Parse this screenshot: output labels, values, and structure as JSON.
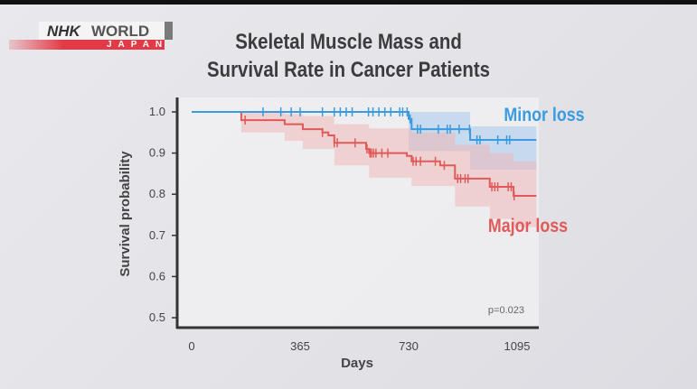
{
  "brand": {
    "logo_line1_a": "NHK",
    "logo_line1_b": "WORLD",
    "logo_line2": "JAPAN"
  },
  "chart_data": {
    "type": "line",
    "subtype": "kaplan-meier step",
    "title_line1": "Skeletal Muscle Mass and",
    "title_line2": "Survival Rate in Cancer Patients",
    "xlabel": "Days",
    "ylabel": "Survival probability",
    "xticks": [
      0,
      365,
      730,
      1095
    ],
    "yticks": [
      0.5,
      0.6,
      0.7,
      0.8,
      0.9,
      1.0
    ],
    "xlim": [
      -30,
      1165
    ],
    "ylim": [
      0.48,
      1.03
    ],
    "grid": false,
    "annotation": "p=0.023",
    "series": [
      {
        "name": "Minor loss",
        "color": "#3a9be0",
        "band_color": "#9fc6ec",
        "steps": [
          [
            0,
            1.0
          ],
          [
            730,
            0.983
          ],
          [
            740,
            0.958
          ],
          [
            937,
            0.932
          ]
        ],
        "end": 1160,
        "ci": [
          [
            730,
            0.905,
            1.0
          ],
          [
            937,
            0.86,
            0.965
          ]
        ],
        "censored": [
          240,
          300,
          335,
          365,
          440,
          480,
          500,
          520,
          540,
          595,
          610,
          630,
          650,
          670,
          700,
          710,
          725,
          735,
          760,
          770,
          830,
          860,
          870,
          900,
          935,
          960,
          970,
          1030,
          1060,
          1070
        ]
      },
      {
        "name": "Major loss",
        "color": "#e05a5a",
        "band_color": "#f2b4b4",
        "steps": [
          [
            0,
            1.0
          ],
          [
            167,
            0.98
          ],
          [
            313,
            0.97
          ],
          [
            374,
            0.958
          ],
          [
            440,
            0.95
          ],
          [
            460,
            0.943
          ],
          [
            480,
            0.925
          ],
          [
            587,
            0.91
          ],
          [
            597,
            0.9
          ],
          [
            724,
            0.893
          ],
          [
            740,
            0.88
          ],
          [
            836,
            0.87
          ],
          [
            886,
            0.838
          ],
          [
            1003,
            0.818
          ],
          [
            1083,
            0.796
          ]
        ],
        "end": 1160,
        "ci": [
          [
            167,
            0.95,
            1.0
          ],
          [
            313,
            0.93,
            0.995
          ],
          [
            374,
            0.91,
            0.99
          ],
          [
            480,
            0.87,
            0.97
          ],
          [
            597,
            0.84,
            0.96
          ],
          [
            740,
            0.82,
            0.95
          ],
          [
            886,
            0.77,
            0.92
          ],
          [
            1003,
            0.74,
            0.9
          ],
          [
            1083,
            0.72,
            0.88
          ]
        ],
        "censored": [
          180,
          440,
          480,
          490,
          550,
          590,
          600,
          605,
          612,
          620,
          640,
          660,
          745,
          755,
          770,
          820,
          850,
          895,
          905,
          920,
          930,
          1010,
          1020,
          1030,
          1065,
          1075,
          1085
        ]
      }
    ]
  }
}
